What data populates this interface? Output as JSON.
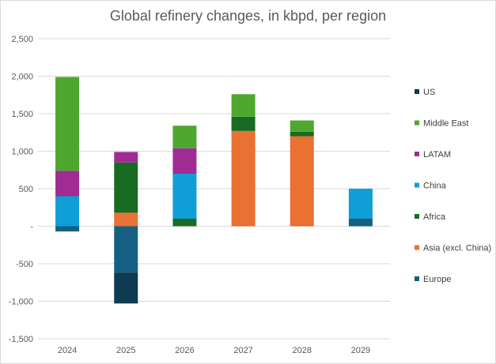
{
  "chart_data": {
    "type": "bar",
    "stacked": true,
    "title": "Global refinery changes, in kbpd, per region",
    "xlabel": "",
    "ylabel": "",
    "categories": [
      "2024",
      "2025",
      "2026",
      "2027",
      "2028",
      "2029"
    ],
    "ylim": [
      -1500,
      2500
    ],
    "yticks": [
      2500,
      2000,
      1500,
      1000,
      500,
      0,
      -500,
      -1000,
      -1500
    ],
    "ytick_labels": [
      "2,500",
      "2,000",
      "1,500",
      "1,000",
      "500",
      "-",
      "-500",
      "-1,000",
      "-1,500"
    ],
    "grid": true,
    "legend_position": "right",
    "series": [
      {
        "name": "Europe",
        "color": "#156082",
        "values": [
          -70,
          -620,
          0,
          0,
          0,
          100
        ]
      },
      {
        "name": "Asia (excl. China)",
        "color": "#e97132",
        "values": [
          0,
          180,
          0,
          1270,
          1200,
          0
        ]
      },
      {
        "name": "Africa",
        "color": "#196b24",
        "values": [
          0,
          670,
          100,
          190,
          60,
          0
        ]
      },
      {
        "name": "China",
        "color": "#0f9ed5",
        "values": [
          400,
          0,
          600,
          0,
          0,
          400
        ]
      },
      {
        "name": "LATAM",
        "color": "#a02b93",
        "values": [
          340,
          140,
          340,
          0,
          0,
          0
        ]
      },
      {
        "name": "Middle East",
        "color": "#4ea72e",
        "values": [
          1250,
          0,
          300,
          300,
          150,
          0
        ]
      },
      {
        "name": "US",
        "color": "#0e3a52",
        "values": [
          0,
          -410,
          0,
          0,
          0,
          0
        ]
      }
    ],
    "legend_order": [
      "US",
      "Middle East",
      "LATAM",
      "China",
      "Africa",
      "Asia (excl. China)",
      "Europe"
    ]
  }
}
